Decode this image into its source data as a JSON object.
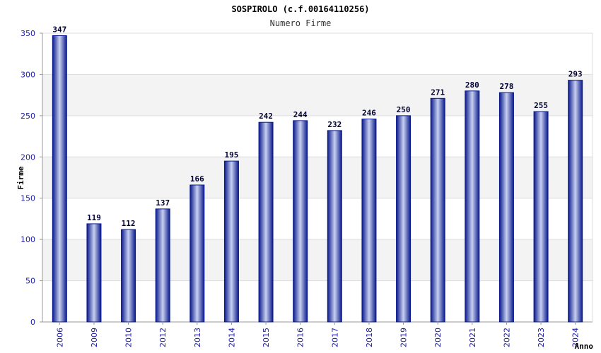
{
  "chart_data": {
    "type": "bar",
    "title": "SOSPIROLO (c.f.00164110256)",
    "subtitle": "Numero Firme",
    "xlabel": "Anno",
    "ylabel": "Firme",
    "ylim": [
      0,
      350
    ],
    "yticks": [
      0,
      50,
      100,
      150,
      200,
      250,
      300,
      350
    ],
    "grid": true,
    "categories": [
      "2006",
      "2009",
      "2010",
      "2012",
      "2013",
      "2014",
      "2015",
      "2016",
      "2017",
      "2018",
      "2019",
      "2020",
      "2021",
      "2022",
      "2023",
      "2024"
    ],
    "values": [
      347,
      119,
      112,
      137,
      166,
      195,
      242,
      244,
      232,
      246,
      250,
      271,
      280,
      278,
      255,
      293
    ],
    "colors": {
      "bar_edge": "#0a1a8c",
      "bar_center": "#c8d0f0",
      "band": "#f3f3f3",
      "tick": "#1a1aa6"
    }
  }
}
